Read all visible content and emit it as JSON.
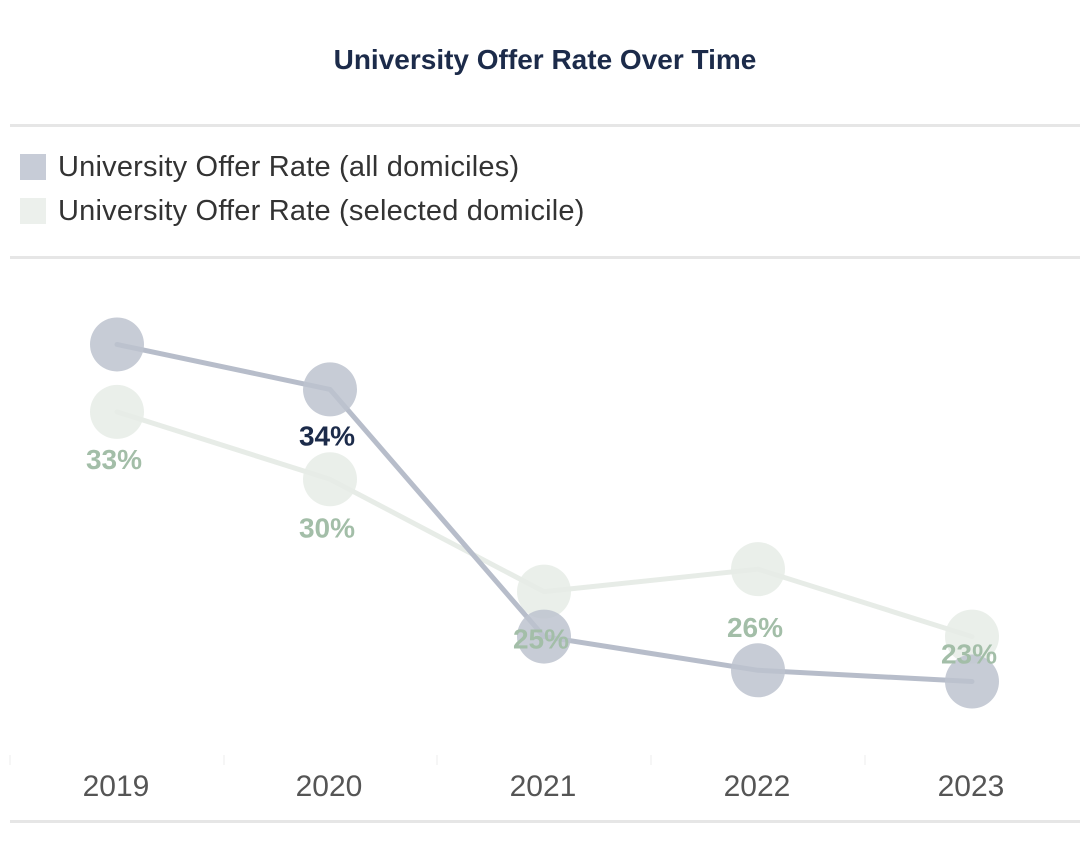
{
  "chart_data": {
    "type": "line",
    "title": "University Offer Rate Over Time",
    "categories": [
      "2019",
      "2020",
      "2021",
      "2022",
      "2023"
    ],
    "series": [
      {
        "name": "University Offer Rate (all domiciles)",
        "values": [
          36,
          34,
          23,
          21.5,
          21
        ],
        "labels": [
          "",
          "34%",
          "",
          "",
          ""
        ],
        "color": "#b9bfcc"
      },
      {
        "name": "University Offer Rate (selected domicile)",
        "values": [
          33,
          30,
          25,
          26,
          23
        ],
        "labels": [
          "33%",
          "30%",
          "25%",
          "26%",
          "23%"
        ],
        "color": "#e5ebe5"
      }
    ],
    "highlight_label_color": "#1c2b4a",
    "label_color": "#a3bea8",
    "xlabel": "",
    "ylabel": "",
    "ylim": [
      20,
      37
    ],
    "grid": false,
    "legend_position": "top"
  }
}
